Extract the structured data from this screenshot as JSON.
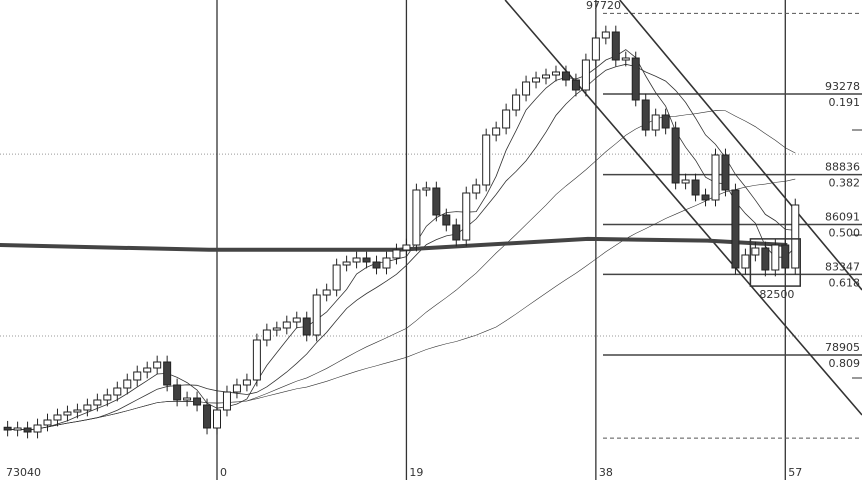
{
  "chart_data": {
    "type": "candlestick",
    "x_tick_labels": [
      {
        "index": -21,
        "label": "73040"
      },
      {
        "index": 0,
        "label": "0"
      },
      {
        "index": 19,
        "label": "19"
      },
      {
        "index": 38,
        "label": "38"
      },
      {
        "index": 57,
        "label": "57"
      }
    ],
    "vertical_lines_at_index": [
      0,
      19,
      38,
      57
    ],
    "first_index": -21,
    "closes": [
      74774,
      74885,
      74664,
      75050,
      75325,
      75601,
      75766,
      75876,
      76151,
      76427,
      76702,
      77087,
      77528,
      77969,
      78189,
      78519,
      77253,
      76427,
      76537,
      76151,
      74885,
      75876,
      76867,
      77253,
      77528,
      79731,
      80281,
      80392,
      80722,
      80942,
      80006,
      82209,
      82484,
      83861,
      84026,
      84247,
      84026,
      83696,
      84247,
      84687,
      84962,
      87991,
      88101,
      86615,
      86064,
      85238,
      87826,
      88267,
      91020,
      91406,
      92397,
      93223,
      93939,
      94159,
      94324,
      94490,
      94049,
      93498,
      95150,
      96362,
      96692,
      95150,
      95261,
      92948,
      91295,
      92122,
      91406,
      88377,
      88542,
      87716,
      87441,
      89919,
      87991,
      83696,
      84412,
      84797,
      83586,
      84962,
      83696,
      87165
    ],
    "moving_averages": [
      5,
      10,
      25,
      50
    ],
    "long_ma": [
      [
        -21,
        84960
      ],
      [
        0,
        84700
      ],
      [
        19,
        84700
      ],
      [
        38,
        85300
      ],
      [
        50,
        85200
      ],
      [
        58,
        84960
      ]
    ],
    "high_label": "97720",
    "low_box_label": "82500",
    "low_box": {
      "index_from": 53.5,
      "index_to": 58.5,
      "price_top": 85300,
      "price_bottom": 82700
    },
    "fib_levels": [
      {
        "price": 97720,
        "ratio": "",
        "label": "97720",
        "style": "dashed"
      },
      {
        "price": 93278,
        "ratio": "0.191",
        "label": "93278",
        "style": "solid"
      },
      {
        "price": 88836,
        "ratio": "0.382",
        "label": "88836",
        "style": "solid"
      },
      {
        "price": 86091,
        "ratio": "0.500",
        "label": "86091",
        "style": "solid"
      },
      {
        "price": 83347,
        "ratio": "0.618",
        "label": "83347",
        "style": "solid"
      },
      {
        "price": 78905,
        "ratio": "0.809",
        "label": "78905",
        "style": "solid"
      },
      {
        "price": 74330,
        "ratio": "",
        "label": "",
        "style": "dashed"
      }
    ],
    "grid_prices": [
      89970,
      79950
    ],
    "channel_lines": [
      {
        "from": [
          28.9,
          98455
        ],
        "to": [
          64.7,
          75600
        ]
      },
      {
        "from": [
          40.4,
          98455
        ],
        "to": [
          64.7,
          82484
        ]
      }
    ],
    "colors": {
      "bull_fill": "#ffffff",
      "bear_fill": "#404040",
      "line": "#222222",
      "fib": "#444444"
    }
  }
}
